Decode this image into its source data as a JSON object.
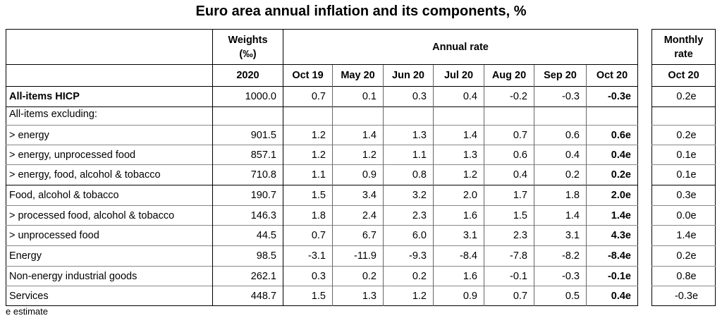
{
  "chart_data": {
    "type": "table",
    "title": "Euro area annual inflation and its components, %",
    "weights_header": "Weights (‰)",
    "weights_header_line1": "Weights",
    "weights_header_line2": "(‰)",
    "weights_year": "2020",
    "annual_rate_header": "Annual rate",
    "monthly_rate_header_line1": "Monthly",
    "monthly_rate_header_line2": "rate",
    "months": [
      "Oct 19",
      "May 20",
      "Jun 20",
      "Jul 20",
      "Aug 20",
      "Sep 20",
      "Oct 20"
    ],
    "monthly_month": "Oct 20",
    "rows": [
      {
        "label": "All-items HICP",
        "weight": "1000.0",
        "values": [
          "0.7",
          "0.1",
          "0.3",
          "0.4",
          "-0.2",
          "-0.3",
          "-0.3e"
        ],
        "monthly": "0.2e"
      },
      {
        "label": "All-items excluding:",
        "weight": "",
        "values": [
          "",
          "",
          "",
          "",
          "",
          "",
          ""
        ],
        "monthly": ""
      },
      {
        "label": "> energy",
        "weight": "901.5",
        "values": [
          "1.2",
          "1.4",
          "1.3",
          "1.4",
          "0.7",
          "0.6",
          "0.6e"
        ],
        "monthly": "0.2e"
      },
      {
        "label": "> energy, unprocessed food",
        "weight": "857.1",
        "values": [
          "1.2",
          "1.2",
          "1.1",
          "1.3",
          "0.6",
          "0.4",
          "0.4e"
        ],
        "monthly": "0.1e"
      },
      {
        "label": "> energy, food, alcohol & tobacco",
        "weight": "710.8",
        "values": [
          "1.1",
          "0.9",
          "0.8",
          "1.2",
          "0.4",
          "0.2",
          "0.2e"
        ],
        "monthly": "0.1e"
      },
      {
        "label": "Food, alcohol & tobacco",
        "weight": "190.7",
        "values": [
          "1.5",
          "3.4",
          "3.2",
          "2.0",
          "1.7",
          "1.8",
          "2.0e"
        ],
        "monthly": "0.3e"
      },
      {
        "label": "> processed food, alcohol & tobacco",
        "weight": "146.3",
        "values": [
          "1.8",
          "2.4",
          "2.3",
          "1.6",
          "1.5",
          "1.4",
          "1.4e"
        ],
        "monthly": "0.0e"
      },
      {
        "label": "> unprocessed food",
        "weight": "44.5",
        "values": [
          "0.7",
          "6.7",
          "6.0",
          "3.1",
          "2.3",
          "3.1",
          "4.3e"
        ],
        "monthly": "1.4e"
      },
      {
        "label": "Energy",
        "weight": "98.5",
        "values": [
          "-3.1",
          "-11.9",
          "-9.3",
          "-8.4",
          "-7.8",
          "-8.2",
          "-8.4e"
        ],
        "monthly": "0.2e"
      },
      {
        "label": "Non-energy industrial goods",
        "weight": "262.1",
        "values": [
          "0.3",
          "0.2",
          "0.2",
          "1.6",
          "-0.1",
          "-0.3",
          "-0.1e"
        ],
        "monthly": "0.8e"
      },
      {
        "label": "Services",
        "weight": "448.7",
        "values": [
          "1.5",
          "1.3",
          "1.2",
          "0.9",
          "0.7",
          "0.5",
          "0.4e"
        ],
        "monthly": "-0.3e"
      }
    ],
    "footnote": "e estimate"
  }
}
